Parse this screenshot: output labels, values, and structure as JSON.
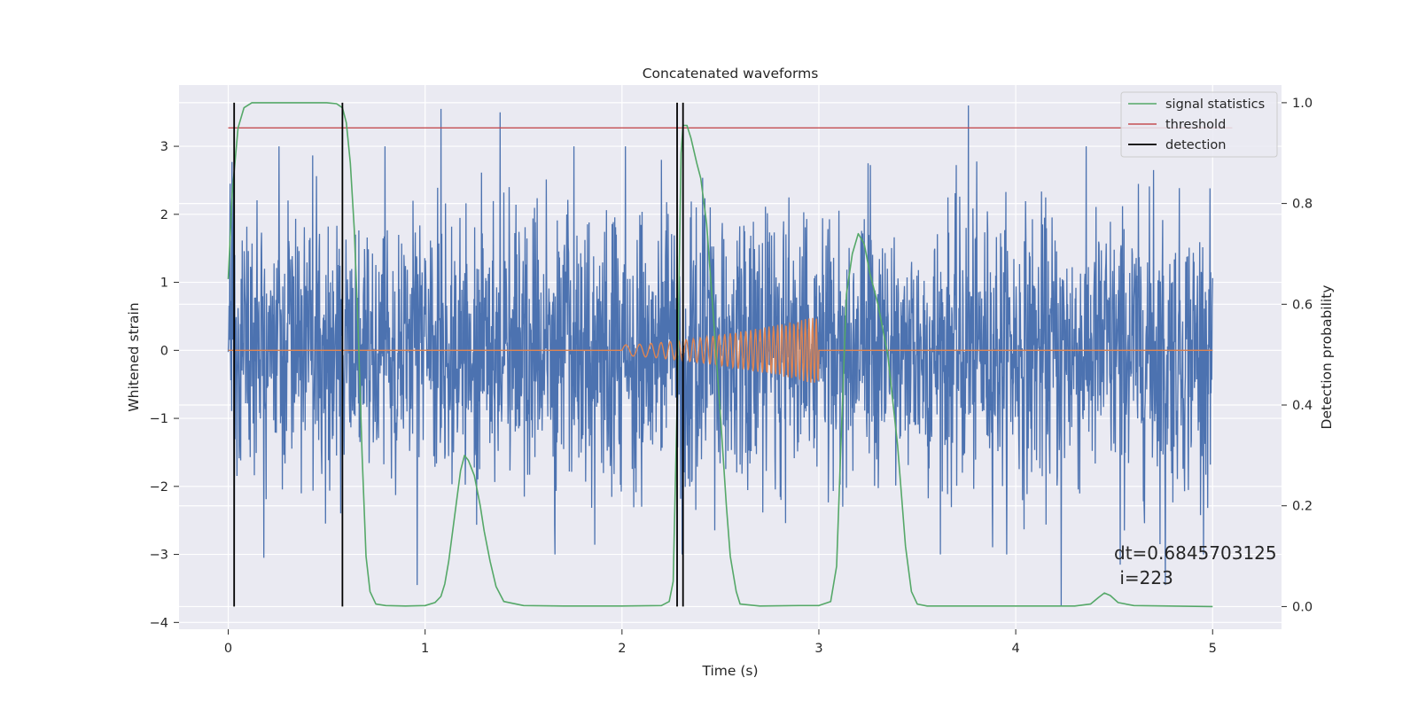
{
  "chart_data": {
    "type": "line",
    "title": "Concatenated waveforms",
    "xlabel": "Time (s)",
    "ylabel": "Whitened strain",
    "y2label": "Detection probability",
    "xlim": [
      -0.25,
      5.35
    ],
    "ylim": [
      -4.1,
      3.9
    ],
    "y2lim": [
      -0.045,
      1.035
    ],
    "x_ticks": [
      "0",
      "1",
      "2",
      "3",
      "4",
      "5"
    ],
    "y_ticks": [
      "−4",
      "−3",
      "−2",
      "−1",
      "0",
      "1",
      "2",
      "3"
    ],
    "y2_ticks": [
      "0.0",
      "0.2",
      "0.4",
      "0.6",
      "0.8",
      "1.0"
    ],
    "grid": true,
    "legend_position": "top-right",
    "colors": {
      "strain": "#4c72b0",
      "template": "#dd8452",
      "signal_statistics": "#55a868",
      "threshold": "#c44e52",
      "detection": "#000000",
      "background": "#eaeaf2",
      "grid": "#ffffff"
    },
    "series": [
      {
        "name": "",
        "axis": "left",
        "description": "whitened strain noise, spans 0–5 s, amplitude mostly within ±2.5 with spikes",
        "x_range": [
          0,
          5
        ],
        "typical_amplitude": 1.0,
        "spikes": [
          {
            "x": 0.03,
            "y": -2.65
          },
          {
            "x": 0.01,
            "y": 2.45
          },
          {
            "x": 1.08,
            "y": 3.55
          },
          {
            "x": 1.38,
            "y": 3.5
          },
          {
            "x": 0.96,
            "y": -3.45
          },
          {
            "x": 0.18,
            "y": -3.05
          },
          {
            "x": 3.76,
            "y": 3.6
          },
          {
            "x": 4.23,
            "y": -3.75
          },
          {
            "x": 4.76,
            "y": -3.45
          },
          {
            "x": 4.53,
            "y": -3.15
          },
          {
            "x": 4.7,
            "y": 2.65
          },
          {
            "x": 2.2,
            "y": 2.8
          },
          {
            "x": 3.25,
            "y": 2.75
          }
        ]
      },
      {
        "name": "",
        "axis": "left",
        "description": "chirp template injected between 2 s and 3 s",
        "x_range": [
          0,
          5
        ],
        "chirp_start": 2.0,
        "chirp_end": 3.0,
        "amplitude_start": 0.08,
        "amplitude_end": 0.5
      },
      {
        "name": "signal statistics",
        "axis": "right",
        "x": [
          0.0,
          0.02,
          0.05,
          0.08,
          0.12,
          0.2,
          0.3,
          0.4,
          0.5,
          0.55,
          0.58,
          0.6,
          0.62,
          0.64,
          0.66,
          0.68,
          0.7,
          0.72,
          0.75,
          0.8,
          0.9,
          1.0,
          1.05,
          1.08,
          1.1,
          1.12,
          1.15,
          1.18,
          1.2,
          1.22,
          1.25,
          1.28,
          1.3,
          1.33,
          1.36,
          1.4,
          1.5,
          1.7,
          2.0,
          2.2,
          2.24,
          2.26,
          2.28,
          2.3,
          2.31,
          2.33,
          2.35,
          2.38,
          2.4,
          2.43,
          2.46,
          2.5,
          2.53,
          2.55,
          2.58,
          2.6,
          2.7,
          2.9,
          3.0,
          3.06,
          3.09,
          3.11,
          3.14,
          3.17,
          3.2,
          3.23,
          3.26,
          3.3,
          3.35,
          3.4,
          3.44,
          3.47,
          3.5,
          3.55,
          3.7,
          4.0,
          4.3,
          4.38,
          4.42,
          4.45,
          4.48,
          4.52,
          4.6,
          5.0
        ],
        "values": [
          0.65,
          0.82,
          0.95,
          0.99,
          1.0,
          1.0,
          1.0,
          1.0,
          1.0,
          0.998,
          0.99,
          0.96,
          0.88,
          0.75,
          0.55,
          0.3,
          0.1,
          0.03,
          0.005,
          0.002,
          0.001,
          0.002,
          0.008,
          0.02,
          0.045,
          0.09,
          0.18,
          0.27,
          0.3,
          0.29,
          0.26,
          0.2,
          0.15,
          0.09,
          0.04,
          0.01,
          0.002,
          0.001,
          0.001,
          0.002,
          0.01,
          0.05,
          0.4,
          0.9,
          0.955,
          0.955,
          0.93,
          0.88,
          0.85,
          0.76,
          0.6,
          0.38,
          0.2,
          0.1,
          0.03,
          0.005,
          0.001,
          0.002,
          0.002,
          0.01,
          0.08,
          0.3,
          0.62,
          0.7,
          0.74,
          0.72,
          0.66,
          0.6,
          0.5,
          0.32,
          0.12,
          0.03,
          0.005,
          0.001,
          0.001,
          0.001,
          0.001,
          0.005,
          0.018,
          0.027,
          0.022,
          0.008,
          0.002,
          0.0
        ]
      },
      {
        "name": "threshold",
        "axis": "right",
        "x": [
          0.0,
          5.1
        ],
        "values": [
          0.95,
          0.95
        ]
      },
      {
        "name": "detection",
        "axis": "right",
        "type": "vlines",
        "x": [
          0.03,
          0.58,
          2.28,
          2.31
        ],
        "y_range": [
          0.0,
          1.0
        ]
      }
    ],
    "legend": [
      "signal statistics",
      "threshold",
      "detection"
    ],
    "annotation": "dt=0.6845703125\n i=223",
    "annotation_lines": [
      "dt=0.6845703125",
      " i=223"
    ],
    "annotation_anchor": {
      "x": 4.5,
      "y": 0.1
    }
  }
}
